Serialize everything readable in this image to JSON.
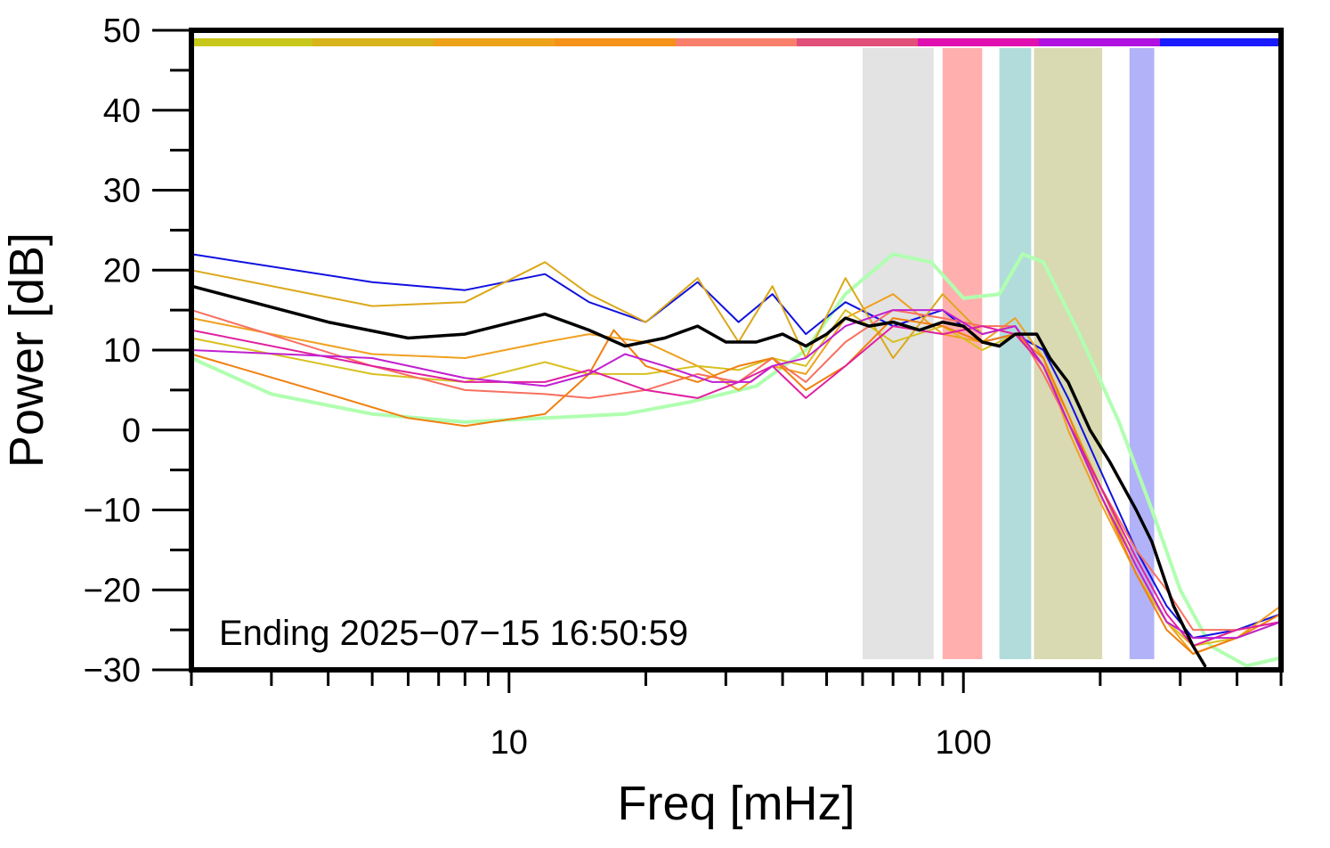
{
  "chart_data": {
    "type": "line",
    "xlabel": "Freq [mHz]",
    "ylabel": "Power [dB]",
    "xscale": "log",
    "xlim": [
      2,
      500
    ],
    "ylim": [
      -30,
      50
    ],
    "x_tick_labels": [
      {
        "value": 10,
        "label": "10"
      },
      {
        "value": 100,
        "label": "100"
      }
    ],
    "y_tick_labels": [
      {
        "value": 50,
        "label": "50"
      },
      {
        "value": 40,
        "label": "40"
      },
      {
        "value": 30,
        "label": "30"
      },
      {
        "value": 20,
        "label": "20"
      },
      {
        "value": 10,
        "label": "10"
      },
      {
        "value": 0,
        "label": "0"
      },
      {
        "value": -10,
        "label": "−10"
      },
      {
        "value": -20,
        "label": "−20"
      },
      {
        "value": -30,
        "label": "−30"
      }
    ],
    "annotation": "Ending 2025−07−15 16:50:59",
    "grid": false,
    "top_bar_colors": [
      "#c8c81a",
      "#d8b41a",
      "#eda21a",
      "#f5921a",
      "#f8806a",
      "#e0507a",
      "#e010b0",
      "#b010e0",
      "#1a1aff"
    ],
    "bands": [
      {
        "x0": 60,
        "x1": 86,
        "color": "#e3e3e3"
      },
      {
        "x0": 90,
        "x1": 110,
        "color": "#ffb0ae"
      },
      {
        "x0": 120,
        "x1": 141,
        "color": "#b2dcdc"
      },
      {
        "x0": 143,
        "x1": 202,
        "color": "#d9d9b2"
      },
      {
        "x0": 232,
        "x1": 263,
        "color": "#b2b2f8"
      }
    ],
    "series": [
      {
        "color": "#b0ffb0",
        "width": 4,
        "points": [
          [
            2,
            9
          ],
          [
            3,
            4.5
          ],
          [
            5,
            2
          ],
          [
            8,
            1
          ],
          [
            12,
            1.5
          ],
          [
            18,
            2
          ],
          [
            25,
            3.5
          ],
          [
            35,
            5.5
          ],
          [
            45,
            10
          ],
          [
            55,
            17
          ],
          [
            70,
            22
          ],
          [
            85,
            21
          ],
          [
            100,
            16.5
          ],
          [
            120,
            17
          ],
          [
            135,
            22
          ],
          [
            150,
            21
          ],
          [
            180,
            12
          ],
          [
            220,
            1
          ],
          [
            260,
            -10
          ],
          [
            300,
            -20
          ],
          [
            350,
            -27
          ],
          [
            420,
            -29.5
          ],
          [
            500,
            -28.5
          ]
        ]
      },
      {
        "color": "#1010e0",
        "width": 2,
        "points": [
          [
            2,
            22
          ],
          [
            5,
            18.5
          ],
          [
            8,
            17.5
          ],
          [
            12,
            19.5
          ],
          [
            15,
            16
          ],
          [
            20,
            13.5
          ],
          [
            26,
            18.5
          ],
          [
            32,
            13.5
          ],
          [
            38,
            17
          ],
          [
            45,
            12
          ],
          [
            55,
            16
          ],
          [
            70,
            13
          ],
          [
            90,
            15
          ],
          [
            110,
            11
          ],
          [
            130,
            12
          ],
          [
            150,
            10
          ],
          [
            170,
            4
          ],
          [
            200,
            -5
          ],
          [
            240,
            -15
          ],
          [
            280,
            -22
          ],
          [
            320,
            -26
          ],
          [
            400,
            -25
          ],
          [
            500,
            -23
          ]
        ]
      },
      {
        "color": "#dba81a",
        "width": 2,
        "points": [
          [
            2,
            20
          ],
          [
            5,
            15.5
          ],
          [
            8,
            16
          ],
          [
            12,
            21
          ],
          [
            15,
            17
          ],
          [
            20,
            13.5
          ],
          [
            26,
            19
          ],
          [
            32,
            11
          ],
          [
            38,
            18
          ],
          [
            45,
            9
          ],
          [
            55,
            19
          ],
          [
            70,
            9
          ],
          [
            90,
            17
          ],
          [
            110,
            12
          ],
          [
            130,
            13
          ],
          [
            150,
            8
          ],
          [
            170,
            2
          ],
          [
            200,
            -7
          ],
          [
            240,
            -17
          ],
          [
            280,
            -24
          ],
          [
            320,
            -27
          ],
          [
            400,
            -25
          ],
          [
            500,
            -24
          ]
        ]
      },
      {
        "color": "#f0a020",
        "width": 2,
        "points": [
          [
            2,
            14
          ],
          [
            5,
            9.5
          ],
          [
            8,
            9
          ],
          [
            12,
            11
          ],
          [
            15,
            12
          ],
          [
            20,
            11
          ],
          [
            26,
            8
          ],
          [
            32,
            5
          ],
          [
            38,
            8
          ],
          [
            45,
            7
          ],
          [
            55,
            14
          ],
          [
            70,
            17
          ],
          [
            90,
            12
          ],
          [
            110,
            11
          ],
          [
            130,
            14
          ],
          [
            150,
            9
          ],
          [
            170,
            0
          ],
          [
            200,
            -9
          ],
          [
            240,
            -18
          ],
          [
            280,
            -24
          ],
          [
            320,
            -28
          ],
          [
            400,
            -26
          ],
          [
            500,
            -22
          ]
        ]
      },
      {
        "color": "#d8c020",
        "width": 2,
        "points": [
          [
            2,
            11.5
          ],
          [
            5,
            7
          ],
          [
            8,
            6
          ],
          [
            12,
            8.5
          ],
          [
            15,
            7
          ],
          [
            20,
            7
          ],
          [
            26,
            8
          ],
          [
            32,
            7.5
          ],
          [
            38,
            9
          ],
          [
            45,
            8
          ],
          [
            55,
            15
          ],
          [
            70,
            11
          ],
          [
            90,
            13
          ],
          [
            110,
            10
          ],
          [
            130,
            12
          ],
          [
            150,
            8
          ],
          [
            170,
            1
          ],
          [
            200,
            -8
          ],
          [
            240,
            -18
          ],
          [
            280,
            -24
          ],
          [
            320,
            -27
          ],
          [
            400,
            -26
          ],
          [
            500,
            -24
          ]
        ]
      },
      {
        "color": "#f87060",
        "width": 2,
        "points": [
          [
            2,
            15
          ],
          [
            5,
            8
          ],
          [
            8,
            5
          ],
          [
            12,
            4.5
          ],
          [
            15,
            4
          ],
          [
            20,
            5
          ],
          [
            26,
            7
          ],
          [
            32,
            6
          ],
          [
            38,
            9
          ],
          [
            45,
            6
          ],
          [
            55,
            11
          ],
          [
            70,
            15
          ],
          [
            90,
            14
          ],
          [
            110,
            13
          ],
          [
            130,
            13
          ],
          [
            150,
            7
          ],
          [
            170,
            1
          ],
          [
            200,
            -7
          ],
          [
            240,
            -15
          ],
          [
            280,
            -20
          ],
          [
            320,
            -25
          ],
          [
            400,
            -25
          ],
          [
            500,
            -24
          ]
        ]
      },
      {
        "color": "#f08010",
        "width": 2,
        "points": [
          [
            2,
            9.5
          ],
          [
            4,
            4.5
          ],
          [
            6,
            1.5
          ],
          [
            8,
            0.5
          ],
          [
            12,
            2
          ],
          [
            15,
            7
          ],
          [
            17,
            12.5
          ],
          [
            20,
            8
          ],
          [
            26,
            6
          ],
          [
            32,
            8
          ],
          [
            38,
            9
          ],
          [
            45,
            5
          ],
          [
            55,
            8
          ],
          [
            70,
            14
          ],
          [
            90,
            13
          ],
          [
            110,
            11
          ],
          [
            130,
            12
          ],
          [
            150,
            9
          ],
          [
            170,
            2
          ],
          [
            200,
            -8
          ],
          [
            240,
            -18
          ],
          [
            280,
            -25
          ],
          [
            320,
            -28
          ],
          [
            400,
            -26
          ],
          [
            500,
            -23
          ]
        ]
      },
      {
        "color": "#e020a0",
        "width": 2,
        "points": [
          [
            2,
            12.5
          ],
          [
            5,
            8
          ],
          [
            8,
            6
          ],
          [
            12,
            6
          ],
          [
            15,
            7.5
          ],
          [
            20,
            5
          ],
          [
            26,
            4
          ],
          [
            32,
            6
          ],
          [
            38,
            8
          ],
          [
            45,
            4
          ],
          [
            55,
            8
          ],
          [
            70,
            13
          ],
          [
            90,
            12
          ],
          [
            110,
            13
          ],
          [
            130,
            12
          ],
          [
            150,
            8
          ],
          [
            170,
            1
          ],
          [
            200,
            -7
          ],
          [
            240,
            -16
          ],
          [
            280,
            -23
          ],
          [
            320,
            -27
          ],
          [
            400,
            -25
          ],
          [
            500,
            -24
          ]
        ]
      },
      {
        "color": "#c020d0",
        "width": 2,
        "points": [
          [
            2,
            10
          ],
          [
            5,
            9
          ],
          [
            8,
            6.5
          ],
          [
            12,
            5.5
          ],
          [
            15,
            7
          ],
          [
            18,
            9.5
          ],
          [
            22,
            8
          ],
          [
            28,
            6
          ],
          [
            34,
            6
          ],
          [
            38,
            8
          ],
          [
            45,
            9
          ],
          [
            55,
            13
          ],
          [
            70,
            15
          ],
          [
            90,
            15
          ],
          [
            110,
            12
          ],
          [
            130,
            13
          ],
          [
            150,
            8
          ],
          [
            170,
            1
          ],
          [
            200,
            -8
          ],
          [
            240,
            -17
          ],
          [
            280,
            -24
          ],
          [
            320,
            -26
          ],
          [
            400,
            -26
          ],
          [
            500,
            -24
          ]
        ]
      },
      {
        "color": "#000000",
        "width": 3.5,
        "points": [
          [
            2,
            18
          ],
          [
            4,
            13.5
          ],
          [
            6,
            11.5
          ],
          [
            8,
            12
          ],
          [
            12,
            14.5
          ],
          [
            15,
            12.5
          ],
          [
            18,
            10.5
          ],
          [
            22,
            11.5
          ],
          [
            26,
            13
          ],
          [
            30,
            11
          ],
          [
            35,
            11
          ],
          [
            40,
            12
          ],
          [
            45,
            10.5
          ],
          [
            50,
            12
          ],
          [
            55,
            14
          ],
          [
            62,
            13
          ],
          [
            70,
            13.5
          ],
          [
            80,
            12.5
          ],
          [
            90,
            13.5
          ],
          [
            100,
            13
          ],
          [
            110,
            11
          ],
          [
            120,
            10.5
          ],
          [
            130,
            12
          ],
          [
            145,
            12
          ],
          [
            155,
            9
          ],
          [
            170,
            6
          ],
          [
            190,
            0
          ],
          [
            210,
            -4
          ],
          [
            240,
            -10
          ],
          [
            260,
            -14
          ],
          [
            290,
            -22
          ],
          [
            320,
            -27
          ],
          [
            340,
            -29.5
          ]
        ]
      }
    ]
  }
}
